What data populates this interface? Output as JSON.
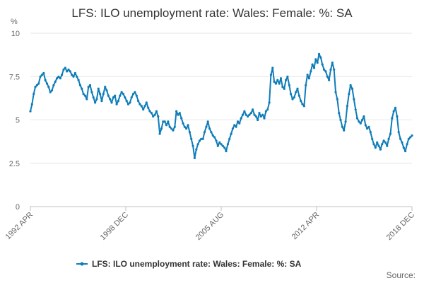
{
  "chart_data": {
    "type": "line",
    "title": "LFS: ILO unemployment rate: Wales: Female: %: SA",
    "y_unit": "%",
    "ylim": [
      0,
      10
    ],
    "y_ticks": [
      0,
      2.5,
      5,
      7.5,
      10
    ],
    "y_tick_labels": [
      "0",
      "2.5",
      "5",
      "7.5",
      "10"
    ],
    "x_tick_labels": [
      "1992 APR",
      "1998 DEC",
      "2005 AUG",
      "2012 APR",
      "2018 DEC"
    ],
    "x_start": "1992-04",
    "x_end": "2018-12",
    "grid": true,
    "legend_position": "bottom",
    "series": [
      {
        "name": "LFS: ILO unemployment rate: Wales: Female: %: SA",
        "color": "#0e7cb8",
        "values": [
          5.5,
          5.9,
          6.5,
          6.9,
          7.0,
          7.1,
          7.5,
          7.6,
          7.7,
          7.3,
          7.1,
          6.9,
          6.6,
          6.7,
          7.0,
          7.2,
          7.4,
          7.5,
          7.4,
          7.6,
          7.9,
          8.0,
          7.8,
          7.9,
          7.8,
          7.6,
          7.5,
          7.7,
          7.5,
          7.3,
          7.0,
          6.8,
          6.5,
          6.4,
          6.2,
          6.9,
          7.0,
          6.6,
          6.3,
          6.0,
          6.2,
          6.8,
          6.5,
          6.1,
          6.5,
          6.9,
          6.7,
          6.4,
          6.2,
          6.0,
          6.3,
          6.4,
          5.9,
          6.1,
          6.4,
          6.6,
          6.5,
          6.3,
          6.1,
          5.9,
          6.0,
          6.3,
          6.5,
          6.6,
          6.4,
          6.1,
          5.9,
          5.8,
          5.6,
          5.8,
          6.0,
          5.7,
          5.5,
          5.4,
          5.2,
          5.3,
          5.5,
          5.2,
          4.2,
          4.5,
          4.9,
          4.9,
          4.7,
          4.9,
          4.6,
          4.5,
          4.4,
          4.6,
          5.5,
          5.3,
          5.4,
          5.1,
          4.8,
          4.6,
          4.5,
          4.7,
          4.3,
          3.9,
          3.5,
          2.8,
          3.3,
          3.6,
          3.8,
          3.9,
          3.9,
          4.3,
          4.6,
          4.9,
          4.5,
          4.3,
          4.1,
          4.0,
          3.8,
          3.5,
          3.7,
          3.6,
          3.5,
          3.4,
          3.2,
          3.6,
          3.9,
          4.2,
          4.5,
          4.7,
          4.6,
          4.9,
          4.8,
          5.1,
          5.3,
          5.5,
          5.3,
          5.2,
          5.3,
          5.4,
          5.6,
          5.3,
          5.2,
          5.0,
          5.4,
          5.2,
          5.3,
          5.1,
          5.5,
          5.6,
          6.0,
          7.6,
          8.0,
          7.2,
          7.1,
          7.3,
          7.1,
          7.4,
          6.9,
          6.8,
          7.3,
          7.5,
          7.0,
          6.5,
          6.2,
          6.3,
          6.6,
          6.8,
          6.4,
          6.1,
          5.9,
          5.8,
          7.0,
          7.6,
          7.4,
          7.8,
          8.2,
          8.0,
          8.5,
          8.3,
          8.8,
          8.6,
          8.2,
          7.9,
          7.8,
          7.5,
          7.3,
          7.9,
          8.3,
          7.9,
          6.6,
          6.2,
          5.4,
          5.0,
          4.6,
          4.4,
          4.9,
          5.8,
          6.5,
          7.0,
          6.8,
          6.2,
          5.6,
          5.1,
          4.9,
          4.8,
          5.0,
          5.2,
          4.7,
          4.5,
          4.6,
          4.3,
          3.9,
          3.6,
          3.4,
          3.7,
          3.5,
          3.3,
          3.6,
          3.8,
          3.7,
          3.5,
          3.9,
          4.2,
          5.1,
          5.5,
          5.7,
          5.2,
          4.3,
          3.9,
          3.7,
          3.4,
          3.2,
          3.6,
          3.9,
          4.0,
          4.1
        ]
      }
    ]
  },
  "source_label": "Source:"
}
